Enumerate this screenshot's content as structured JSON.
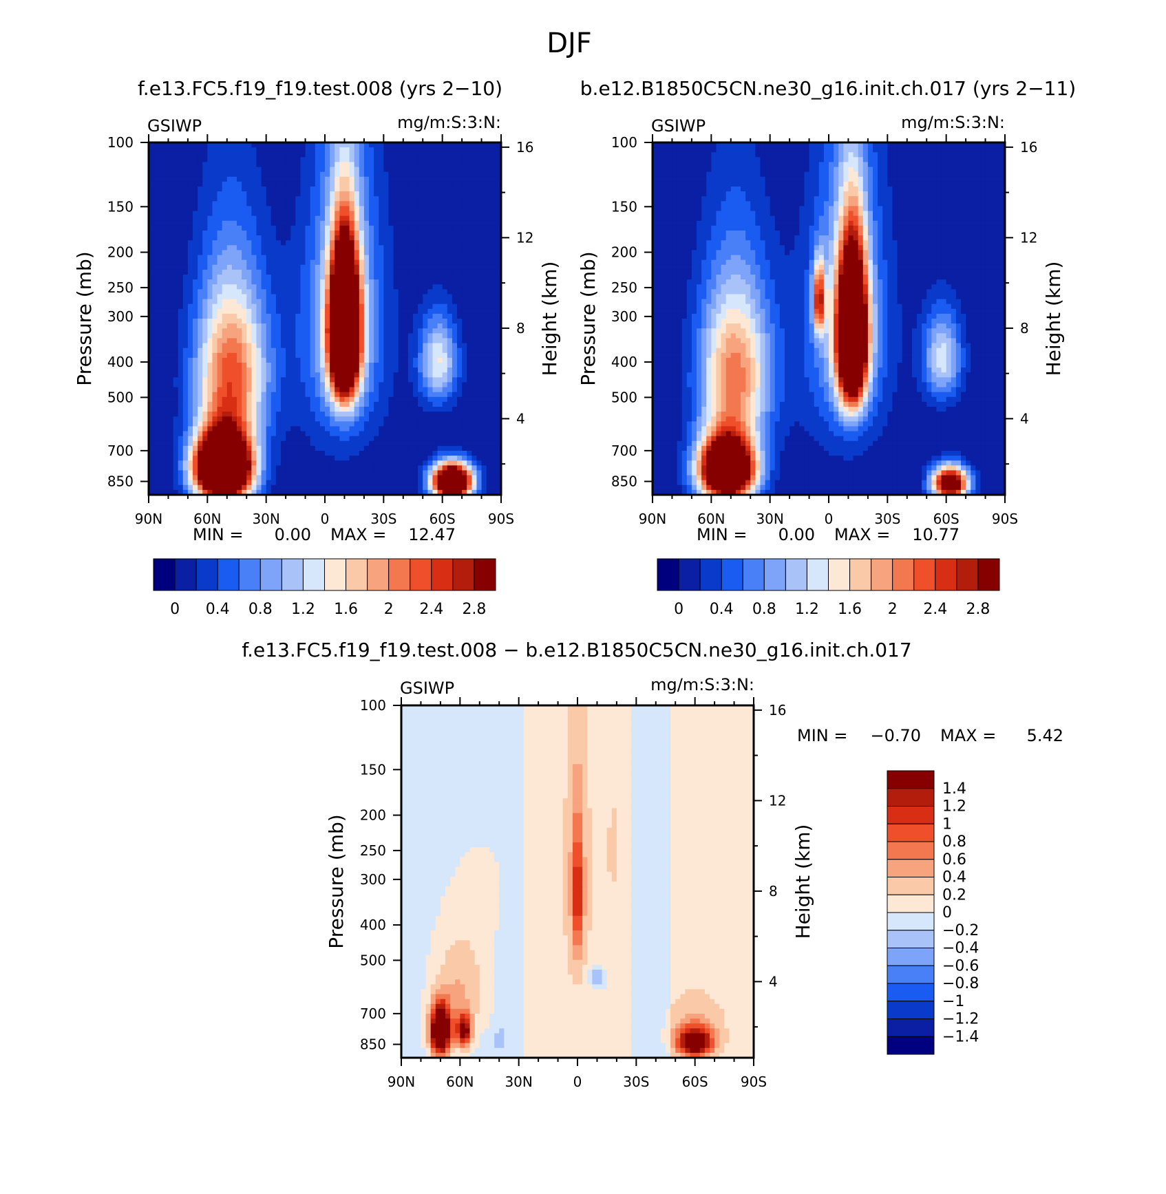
{
  "page": {
    "title": "DJF"
  },
  "color_scales": {
    "main": [
      "#00007f",
      "#0a1fa3",
      "#0a3ac9",
      "#1a5cf2",
      "#4a80f7",
      "#7da4f8",
      "#a9c3f9",
      "#d6e6fb",
      "#fde8d6",
      "#f9c9a8",
      "#f6a37e",
      "#f4784f",
      "#ef502b",
      "#d82e13",
      "#b31e0c",
      "#870000"
    ],
    "diff": [
      "#000080",
      "#0a1fa3",
      "#0a3ac9",
      "#1a5cf2",
      "#4a80f7",
      "#7da4f8",
      "#a9c3f9",
      "#d6e6fb",
      "#fde8d6",
      "#f9c9a8",
      "#f6a37e",
      "#f4784f",
      "#ef502b",
      "#d82e13",
      "#b31e0c",
      "#870000"
    ]
  },
  "chart_data": [
    {
      "type": "heatmap",
      "title": "f.e13.FC5.f19_f19.test.008 (yrs 2−10)",
      "left_label": "GSIWP",
      "right_label": "mg/m:S:3:N:",
      "ylabel": "Pressure (mb)",
      "ylabel_right": "Height (km)",
      "x_ticks": [
        "90N",
        "60N",
        "30N",
        "0",
        "30S",
        "60S",
        "90S"
      ],
      "xlim": [
        90,
        -90
      ],
      "y_ticks": [
        "100",
        "150",
        "200",
        "250",
        "300",
        "400",
        "500",
        "700",
        "850"
      ],
      "y_tick_values": [
        100,
        150,
        200,
        250,
        300,
        400,
        500,
        700,
        850
      ],
      "ylim": [
        100,
        925
      ],
      "height_ticks": [
        "16",
        "12",
        "8",
        "4"
      ],
      "height_tick_values": [
        16,
        12,
        8,
        4
      ],
      "min_label": "MIN =",
      "min_value": "0.00",
      "max_label": "MAX =",
      "max_value": "12.47",
      "colorbar_labels": [
        "0",
        "0.4",
        "0.8",
        "1.2",
        "1.6",
        "2",
        "2.4",
        "2.8"
      ],
      "blobs": [
        {
          "lat": 52,
          "p": 780,
          "slat": 14,
          "sp": 165,
          "amp": 6.5
        },
        {
          "lat": 48,
          "p": 430,
          "slat": 18,
          "sp": 230,
          "amp": 2.3
        },
        {
          "lat": -10,
          "p": 330,
          "slat": 7,
          "sp": 145,
          "amp": 6.2
        },
        {
          "lat": -10,
          "p": 300,
          "slat": 18,
          "sp": 280,
          "amp": 1.1
        },
        {
          "lat": -65,
          "p": 850,
          "slat": 10,
          "sp": 95,
          "amp": 5.0
        },
        {
          "lat": -58,
          "p": 400,
          "slat": 10,
          "sp": 110,
          "amp": 1.4
        }
      ]
    },
    {
      "type": "heatmap",
      "title": "b.e12.B1850C5CN.ne30_g16.init.ch.017 (yrs 2−11)",
      "left_label": "GSIWP",
      "right_label": "mg/m:S:3:N:",
      "ylabel": "Pressure (mb)",
      "ylabel_right": "Height (km)",
      "x_ticks": [
        "90N",
        "60N",
        "30N",
        "0",
        "30S",
        "60S",
        "90S"
      ],
      "xlim": [
        90,
        -90
      ],
      "y_ticks": [
        "100",
        "150",
        "200",
        "250",
        "300",
        "400",
        "500",
        "700",
        "850"
      ],
      "y_tick_values": [
        100,
        150,
        200,
        250,
        300,
        400,
        500,
        700,
        850
      ],
      "ylim": [
        100,
        925
      ],
      "height_ticks": [
        "16",
        "12",
        "8",
        "4"
      ],
      "height_tick_values": [
        16,
        12,
        8,
        4
      ],
      "min_label": "MIN =",
      "min_value": "0.00",
      "max_label": "MAX =",
      "max_value": "10.77",
      "colorbar_labels": [
        "0",
        "0.4",
        "0.8",
        "1.2",
        "1.6",
        "2",
        "2.4",
        "2.8"
      ],
      "blobs": [
        {
          "lat": 52,
          "p": 790,
          "slat": 14,
          "sp": 160,
          "amp": 5.2
        },
        {
          "lat": 48,
          "p": 430,
          "slat": 18,
          "sp": 230,
          "amp": 2.1
        },
        {
          "lat": -12,
          "p": 340,
          "slat": 7,
          "sp": 155,
          "amp": 5.6
        },
        {
          "lat": 5,
          "p": 270,
          "slat": 3,
          "sp": 60,
          "amp": 2.2
        },
        {
          "lat": -10,
          "p": 300,
          "slat": 18,
          "sp": 280,
          "amp": 1.0
        },
        {
          "lat": -62,
          "p": 860,
          "slat": 9,
          "sp": 90,
          "amp": 3.8
        },
        {
          "lat": -58,
          "p": 390,
          "slat": 10,
          "sp": 110,
          "amp": 1.3
        }
      ]
    },
    {
      "type": "heatmap",
      "title": "f.e13.FC5.f19_f19.test.008 − b.e12.B1850C5CN.ne30_g16.init.ch.017",
      "left_label": "GSIWP",
      "right_label": "mg/m:S:3:N:",
      "ylabel": "Pressure (mb)",
      "ylabel_right": "Height (km)",
      "x_ticks": [
        "90N",
        "60N",
        "30N",
        "0",
        "30S",
        "60S",
        "90S"
      ],
      "xlim": [
        90,
        -90
      ],
      "y_ticks": [
        "100",
        "150",
        "200",
        "250",
        "300",
        "400",
        "500",
        "700",
        "850"
      ],
      "y_tick_values": [
        100,
        150,
        200,
        250,
        300,
        400,
        500,
        700,
        850
      ],
      "ylim": [
        100,
        925
      ],
      "height_ticks": [
        "16",
        "12",
        "8",
        "4"
      ],
      "height_tick_values": [
        16,
        12,
        8,
        4
      ],
      "min_label": "MIN =",
      "min_value": "−0.70",
      "max_label": "MAX =",
      "max_value": "5.42",
      "colorbar_labels": [
        "1.4",
        "1.2",
        "1",
        "0.8",
        "0.6",
        "0.4",
        "0.2",
        "0",
        "−0.2",
        "−0.4",
        "−0.6",
        "−0.8",
        "−1",
        "−1.2",
        "−1.4"
      ],
      "blobs": [
        {
          "lat": 70,
          "p": 780,
          "slat": 5,
          "sp": 120,
          "amp": 2.8
        },
        {
          "lat": 58,
          "p": 780,
          "slat": 4,
          "sp": 80,
          "amp": 1.6
        },
        {
          "lat": 60,
          "p": 600,
          "slat": 14,
          "sp": 200,
          "amp": 0.5
        },
        {
          "lat": 45,
          "p": 300,
          "slat": 25,
          "sp": 180,
          "amp": 0.1
        },
        {
          "lat": 0,
          "p": 330,
          "slat": 2.5,
          "sp": 120,
          "amp": 0.9
        },
        {
          "lat": 0,
          "p": 300,
          "slat": 6,
          "sp": 250,
          "amp": 0.35
        },
        {
          "lat": -18,
          "p": 250,
          "slat": 2,
          "sp": 60,
          "amp": 0.3
        },
        {
          "lat": -60,
          "p": 840,
          "slat": 8,
          "sp": 70,
          "amp": 2.0
        },
        {
          "lat": -60,
          "p": 760,
          "slat": 14,
          "sp": 140,
          "amp": 0.35
        },
        {
          "lat": -10,
          "p": 560,
          "slat": 4,
          "sp": 40,
          "amp": -0.5
        },
        {
          "lat": 40,
          "p": 820,
          "slat": 2,
          "sp": 50,
          "amp": -0.35
        }
      ],
      "background_bands": [
        {
          "from": 90,
          "to": 27,
          "value": -0.1
        },
        {
          "from": 27,
          "to": -27,
          "value": 0.1
        },
        {
          "from": -27,
          "to": -47,
          "value": -0.1
        },
        {
          "from": -47,
          "to": -90,
          "value": 0.1
        }
      ]
    }
  ]
}
